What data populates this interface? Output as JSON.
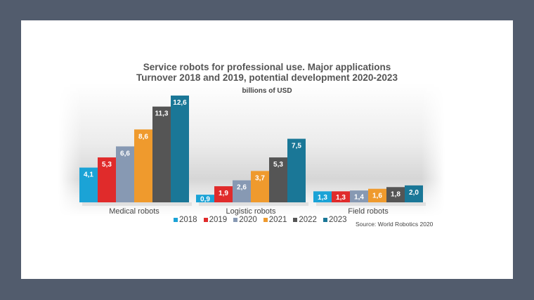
{
  "chart_data": {
    "type": "bar",
    "title": "Service robots for professional use. Major applications",
    "title_line2": "Turnover 2018 and 2019, potential development 2020-2023",
    "subtitle": "billions of USD",
    "xlabel": "",
    "ylabel": "billions of USD",
    "ylim": [
      0,
      12.6
    ],
    "grid": false,
    "legend_position": "bottom",
    "categories": [
      "Medical robots",
      "Logistic robots",
      "Field robots"
    ],
    "series": [
      {
        "name": "2018",
        "color": "#1ba3d6",
        "values": [
          4.1,
          0.9,
          1.3
        ],
        "labels": [
          "4,1",
          "0,9",
          "1,3"
        ]
      },
      {
        "name": "2019",
        "color": "#e02b2b",
        "values": [
          5.3,
          1.9,
          1.3
        ],
        "labels": [
          "5,3",
          "1,9",
          "1,3"
        ]
      },
      {
        "name": "2020",
        "color": "#8799b3",
        "values": [
          6.6,
          2.6,
          1.4
        ],
        "labels": [
          "6,6",
          "2,6",
          "1,4"
        ]
      },
      {
        "name": "2021",
        "color": "#ef9a2d",
        "values": [
          8.6,
          3.7,
          1.6
        ],
        "labels": [
          "8,6",
          "3,7",
          "1,6"
        ]
      },
      {
        "name": "2022",
        "color": "#555555",
        "values": [
          11.3,
          5.3,
          1.8
        ],
        "labels": [
          "11,3",
          "5,3",
          "1,8"
        ]
      },
      {
        "name": "2023",
        "color": "#1a7797",
        "values": [
          12.6,
          7.5,
          2.0
        ],
        "labels": [
          "12,6",
          "7,5",
          "2,0"
        ]
      }
    ],
    "source": "Source: World Robotics 2020"
  }
}
